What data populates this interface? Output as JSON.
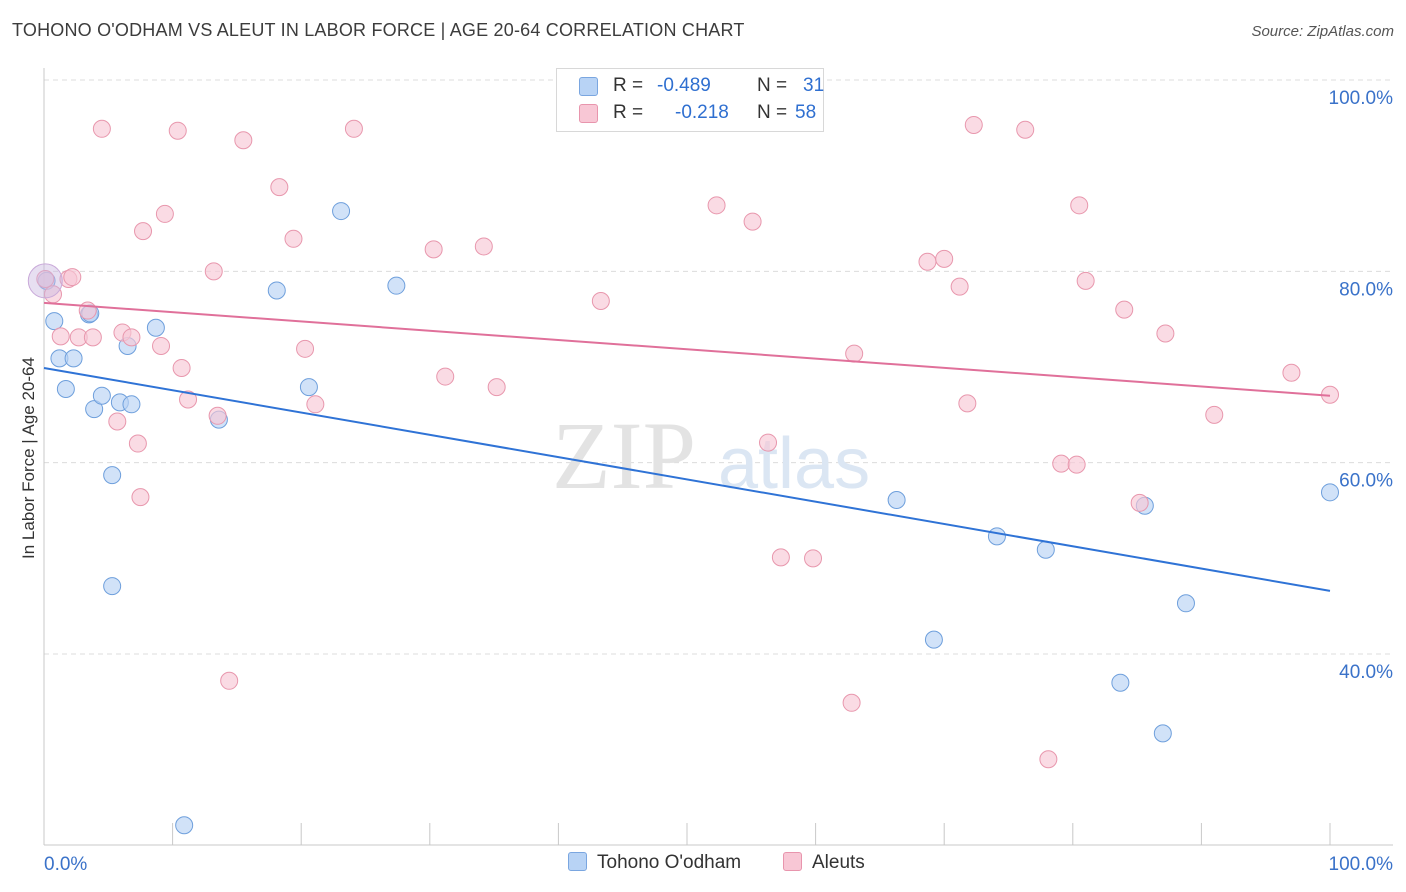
{
  "header": {
    "title": "TOHONO O'ODHAM VS ALEUT IN LABOR FORCE | AGE 20-64 CORRELATION CHART",
    "source": "Source: ZipAtlas.com"
  },
  "watermark": {
    "zip": "ZIP",
    "atlas": "atlas"
  },
  "legend": {
    "r_label": "R =",
    "n_label": "N =",
    "rows": [
      {
        "r": "-0.489",
        "n": "31",
        "swatch_fill": "#b8d3f5",
        "swatch_border": "#7aa6e0"
      },
      {
        "r": "-0.218",
        "n": "58",
        "swatch_fill": "#f8c7d5",
        "swatch_border": "#e895ad"
      }
    ]
  },
  "bottom_legend": [
    "Tohono O'odham",
    "Aleuts"
  ],
  "colors": {
    "blue_fill": "#b8d3f5",
    "blue_stroke": "#6e9fdc",
    "blue_line": "#2f73d6",
    "pink_fill": "#f8c7d5",
    "pink_stroke": "#e897ad",
    "pink_line": "#e0709a",
    "tick_label": "#3a72c9"
  },
  "chart_data": {
    "type": "scatter",
    "title": "TOHONO O'ODHAM VS ALEUT IN LABOR FORCE | AGE 20-64 CORRELATION CHART",
    "xlabel": "",
    "ylabel": "In Labor Force | Age 20-64",
    "xlim": [
      0,
      105
    ],
    "ylim": [
      22,
      102
    ],
    "x_tick_labels": [
      {
        "value": 0,
        "label": "0.0%"
      },
      {
        "value": 100,
        "label": "100.0%"
      }
    ],
    "y_tick_labels": [
      {
        "value": 100,
        "label": "100.0%"
      },
      {
        "value": 80,
        "label": "80.0%"
      },
      {
        "value": 60,
        "label": "60.0%"
      },
      {
        "value": 40,
        "label": "40.0%"
      }
    ],
    "grid": true,
    "legend_position": "top-center",
    "series": [
      {
        "name": "Tohono O'odham",
        "color": "#6e9fdc",
        "trend": {
          "x": [
            0,
            100
          ],
          "y": [
            69.9,
            46.6
          ]
        },
        "points": [
          [
            0.2,
            79.0
          ],
          [
            0.8,
            74.8
          ],
          [
            1.2,
            70.9
          ],
          [
            1.7,
            67.7
          ],
          [
            2.3,
            70.9
          ],
          [
            3.5,
            75.5
          ],
          [
            3.6,
            75.6
          ],
          [
            3.9,
            65.6
          ],
          [
            4.5,
            67.0
          ],
          [
            5.3,
            58.7
          ],
          [
            5.3,
            47.1
          ],
          [
            5.9,
            66.3
          ],
          [
            6.5,
            72.2
          ],
          [
            6.8,
            66.1
          ],
          [
            8.7,
            74.1
          ],
          [
            10.9,
            22.1
          ],
          [
            13.6,
            64.5
          ],
          [
            18.1,
            78.0
          ],
          [
            20.6,
            67.9
          ],
          [
            23.1,
            86.3
          ],
          [
            27.4,
            78.5
          ],
          [
            47.2,
            100.2
          ],
          [
            66.3,
            56.1
          ],
          [
            69.2,
            41.5
          ],
          [
            74.1,
            52.3
          ],
          [
            77.9,
            50.9
          ],
          [
            83.7,
            37.0
          ],
          [
            85.6,
            55.5
          ],
          [
            87.0,
            31.7
          ],
          [
            88.8,
            45.3
          ],
          [
            100.0,
            56.9
          ]
        ]
      },
      {
        "name": "Aleuts",
        "color": "#e897ad",
        "trend": {
          "x": [
            0,
            100
          ],
          "y": [
            76.7,
            67.0
          ]
        },
        "points": [
          [
            0.1,
            79.2
          ],
          [
            0.7,
            77.6
          ],
          [
            1.3,
            73.2
          ],
          [
            1.9,
            79.2
          ],
          [
            2.2,
            79.4
          ],
          [
            2.7,
            73.1
          ],
          [
            3.4,
            75.9
          ],
          [
            3.8,
            73.1
          ],
          [
            4.5,
            94.9
          ],
          [
            5.7,
            64.3
          ],
          [
            6.1,
            73.6
          ],
          [
            6.8,
            73.1
          ],
          [
            7.3,
            62.0
          ],
          [
            7.5,
            56.4
          ],
          [
            7.7,
            84.2
          ],
          [
            9.1,
            72.2
          ],
          [
            9.4,
            86.0
          ],
          [
            10.4,
            94.7
          ],
          [
            10.7,
            69.9
          ],
          [
            11.2,
            66.6
          ],
          [
            13.2,
            80.0
          ],
          [
            13.5,
            64.9
          ],
          [
            14.4,
            37.2
          ],
          [
            15.5,
            93.7
          ],
          [
            18.3,
            88.8
          ],
          [
            19.4,
            83.4
          ],
          [
            20.3,
            71.9
          ],
          [
            21.1,
            66.1
          ],
          [
            24.1,
            94.9
          ],
          [
            30.3,
            82.3
          ],
          [
            31.2,
            69.0
          ],
          [
            34.2,
            82.6
          ],
          [
            35.2,
            67.9
          ],
          [
            43.3,
            76.9
          ],
          [
            52.3,
            86.9
          ],
          [
            55.1,
            85.2
          ],
          [
            56.3,
            62.1
          ],
          [
            57.3,
            50.1
          ],
          [
            59.8,
            50.0
          ],
          [
            62.8,
            34.9
          ],
          [
            63.0,
            71.4
          ],
          [
            68.7,
            81.0
          ],
          [
            70.0,
            81.3
          ],
          [
            71.2,
            78.4
          ],
          [
            71.8,
            66.2
          ],
          [
            72.3,
            95.3
          ],
          [
            76.3,
            94.8
          ],
          [
            78.1,
            29.0
          ],
          [
            79.1,
            59.9
          ],
          [
            80.3,
            59.8
          ],
          [
            80.5,
            86.9
          ],
          [
            81.0,
            79.0
          ],
          [
            84.0,
            76.0
          ],
          [
            85.2,
            55.8
          ],
          [
            87.2,
            73.5
          ],
          [
            91.0,
            65.0
          ],
          [
            97.0,
            69.4
          ],
          [
            100.0,
            67.1
          ]
        ]
      }
    ]
  }
}
